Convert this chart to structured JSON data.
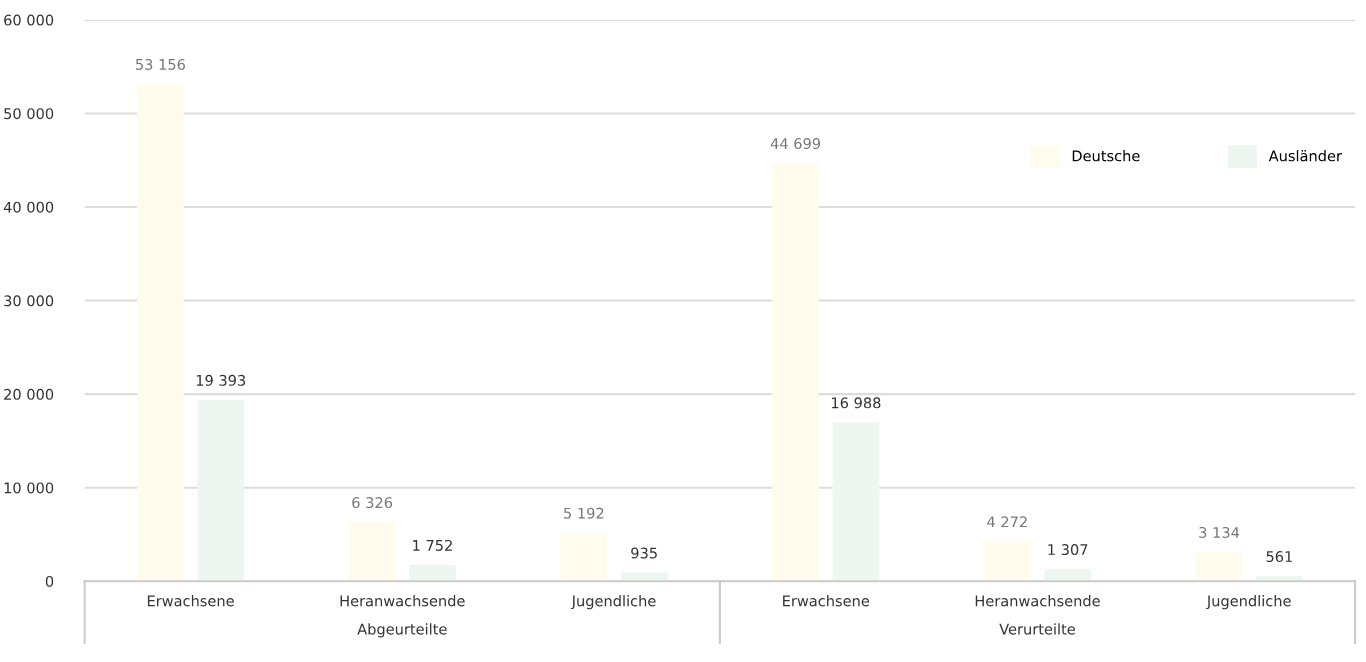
{
  "chart_data": {
    "type": "bar",
    "categories": [
      "Erwachsene",
      "Heranwachsende",
      "Jugendliche",
      "Erwachsene",
      "Heranwachsende",
      "Jugendliche"
    ],
    "series": [
      {
        "name": "Deutsche",
        "color": "#fffcee",
        "values": [
          53156,
          6326,
          5192,
          44699,
          4272,
          3134
        ],
        "value_labels": [
          "53 156",
          "6 326",
          "5 192",
          "44 699",
          "4 272",
          "3 134"
        ]
      },
      {
        "name": "Ausländer",
        "color": "#edf6f0",
        "values": [
          19393,
          1752,
          935,
          16988,
          1307,
          561
        ],
        "value_labels": [
          "19 393",
          "1 752",
          "935",
          "16 988",
          "1 307",
          "561"
        ]
      }
    ],
    "annotations": [
      "Abgeurteilte",
      "Verurteilte"
    ],
    "ylim": [
      0,
      60000
    ],
    "yticks": [
      {
        "value": 0,
        "label": "0"
      },
      {
        "value": 10000,
        "label": "10 000"
      },
      {
        "value": 20000,
        "label": "20 000"
      },
      {
        "value": 30000,
        "label": "30 000"
      },
      {
        "value": 40000,
        "label": "40 000"
      },
      {
        "value": 50000,
        "label": "50 000"
      },
      {
        "value": 60000,
        "label": "60 000"
      }
    ],
    "grid": "y",
    "legend": "top right"
  }
}
